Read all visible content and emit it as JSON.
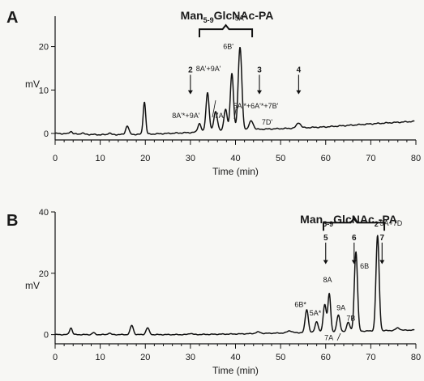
{
  "chart_data": [
    {
      "panel": "A",
      "type": "line",
      "title": "Man5-9GlcNAc-PA",
      "title_parts": {
        "base": "Man",
        "sub": "5-9",
        "rest": "GlcNAc-PA"
      },
      "xlabel": "Time (min)",
      "ylabel": "mV",
      "xlim": [
        0,
        80
      ],
      "ylim": [
        -1.5,
        27
      ],
      "x_ticks": [
        0,
        10,
        20,
        30,
        40,
        50,
        60,
        70,
        80
      ],
      "y_ticks": [
        0,
        10,
        20
      ],
      "grid": false,
      "baseline": [
        [
          0,
          0
        ],
        [
          10,
          -0.3
        ],
        [
          20,
          -0.2
        ],
        [
          30,
          0.2
        ],
        [
          40,
          0.8
        ],
        [
          50,
          1.1
        ],
        [
          60,
          1.5
        ],
        [
          70,
          2.2
        ],
        [
          80,
          2.8
        ]
      ],
      "peaks": [
        {
          "x": 3.5,
          "y": 0.6,
          "w": 0.3
        },
        {
          "x": 6.0,
          "y": 0.3,
          "w": 0.3
        },
        {
          "x": 12.0,
          "y": 0.4,
          "w": 0.3
        },
        {
          "x": 16.0,
          "y": 2.0,
          "w": 0.35
        },
        {
          "x": 19.8,
          "y": 7.5,
          "w": 0.28
        },
        {
          "x": 32.0,
          "y": 2.0,
          "w": 0.35
        },
        {
          "x": 33.8,
          "y": 9.0,
          "w": 0.35
        },
        {
          "x": 35.6,
          "y": 4.5,
          "w": 0.4
        },
        {
          "x": 37.8,
          "y": 5.0,
          "w": 0.35
        },
        {
          "x": 39.2,
          "y": 13.0,
          "w": 0.35
        },
        {
          "x": 41.0,
          "y": 19.0,
          "w": 0.4
        },
        {
          "x": 43.5,
          "y": 2.0,
          "w": 0.45
        },
        {
          "x": 54.0,
          "y": 1.2,
          "w": 0.45
        }
      ],
      "peak_labels": [
        {
          "text": "5A'",
          "x": 41.0,
          "y": 26.0
        },
        {
          "text": "6B'",
          "x": 38.4,
          "y": 19.5
        },
        {
          "text": "8A'+9A'",
          "x": 34.0,
          "y": 14.3
        },
        {
          "text": "8A'*+9A'",
          "x": 29.0,
          "y": 3.5
        },
        {
          "text": "7A'",
          "x": 36.5,
          "y": 3.5
        },
        {
          "text": "5A'*+6A'*+7B'",
          "x": 44.5,
          "y": 5.8
        },
        {
          "text": "7D'",
          "x": 47.0,
          "y": 2.0
        }
      ],
      "arrows": [
        {
          "label": "2",
          "x": 30.0,
          "y_top": 13.5,
          "y_bottom": 9.0
        },
        {
          "label": "3",
          "x": 45.3,
          "y_top": 13.5,
          "y_bottom": 9.0
        },
        {
          "label": "4",
          "x": 54.0,
          "y_top": 13.5,
          "y_bottom": 9.0
        }
      ],
      "bracket": {
        "x_start": 32.0,
        "x_end": 43.7,
        "y": 24.0
      }
    },
    {
      "panel": "B",
      "type": "line",
      "title": "Man5-9GlcNAc2-PA",
      "title_parts": {
        "base": "Man",
        "sub": "5-9",
        "rest": "GlcNAc",
        "sub2": "2",
        "rest2": "-PA"
      },
      "xlabel": "Time (min)",
      "ylabel": "mV",
      "xlim": [
        0,
        80
      ],
      "ylim": [
        -3,
        40
      ],
      "x_ticks": [
        0,
        10,
        20,
        30,
        40,
        50,
        60,
        70,
        80
      ],
      "y_ticks": [
        0,
        20,
        40
      ],
      "grid": false,
      "baseline": [
        [
          0,
          0
        ],
        [
          10,
          0
        ],
        [
          20,
          0
        ],
        [
          30,
          0
        ],
        [
          40,
          0.2
        ],
        [
          50,
          0.5
        ],
        [
          60,
          0.8
        ],
        [
          70,
          1.2
        ],
        [
          80,
          1.5
        ]
      ],
      "peaks": [
        {
          "x": 3.5,
          "y": 2.2,
          "w": 0.3
        },
        {
          "x": 8.5,
          "y": 0.6,
          "w": 0.3
        },
        {
          "x": 12.0,
          "y": 0.5,
          "w": 0.3
        },
        {
          "x": 17.0,
          "y": 3.0,
          "w": 0.35
        },
        {
          "x": 20.5,
          "y": 2.2,
          "w": 0.35
        },
        {
          "x": 30.0,
          "y": 0.4,
          "w": 0.4
        },
        {
          "x": 45.0,
          "y": 0.5,
          "w": 0.5
        },
        {
          "x": 52.0,
          "y": 0.7,
          "w": 0.5
        },
        {
          "x": 55.8,
          "y": 7.5,
          "w": 0.35
        },
        {
          "x": 58.0,
          "y": 3.5,
          "w": 0.35
        },
        {
          "x": 59.8,
          "y": 9.0,
          "w": 0.35
        },
        {
          "x": 60.8,
          "y": 12.5,
          "w": 0.3
        },
        {
          "x": 62.8,
          "y": 5.5,
          "w": 0.35
        },
        {
          "x": 65.0,
          "y": 3.0,
          "w": 0.35
        },
        {
          "x": 66.7,
          "y": 26.0,
          "w": 0.35
        },
        {
          "x": 71.5,
          "y": 31.0,
          "w": 0.35
        },
        {
          "x": 76.0,
          "y": 0.8,
          "w": 0.45
        }
      ],
      "peak_labels": [
        {
          "text": "5A+7D",
          "x": 74.5,
          "y": 35.5
        },
        {
          "text": "6B",
          "x": 68.6,
          "y": 21.5
        },
        {
          "text": "8A",
          "x": 60.4,
          "y": 17.0
        },
        {
          "text": "6B*",
          "x": 54.4,
          "y": 9.0
        },
        {
          "text": "5A*",
          "x": 57.7,
          "y": 6.2
        },
        {
          "text": "9A",
          "x": 63.4,
          "y": 8.0
        },
        {
          "text": "7B",
          "x": 65.6,
          "y": 4.5
        },
        {
          "text": "7A",
          "x": 60.7,
          "y": -1.8
        }
      ],
      "arrows": [
        {
          "label": "5",
          "x": 60.0,
          "y_top": 30.0,
          "y_bottom": 23.0
        },
        {
          "label": "6",
          "x": 66.3,
          "y_top": 30.0,
          "y_bottom": 23.0
        },
        {
          "label": "7",
          "x": 72.5,
          "y_top": 30.0,
          "y_bottom": 23.0
        }
      ],
      "bracket": {
        "x_start": 59.5,
        "x_end": 73.0,
        "y": 36.5
      }
    }
  ]
}
